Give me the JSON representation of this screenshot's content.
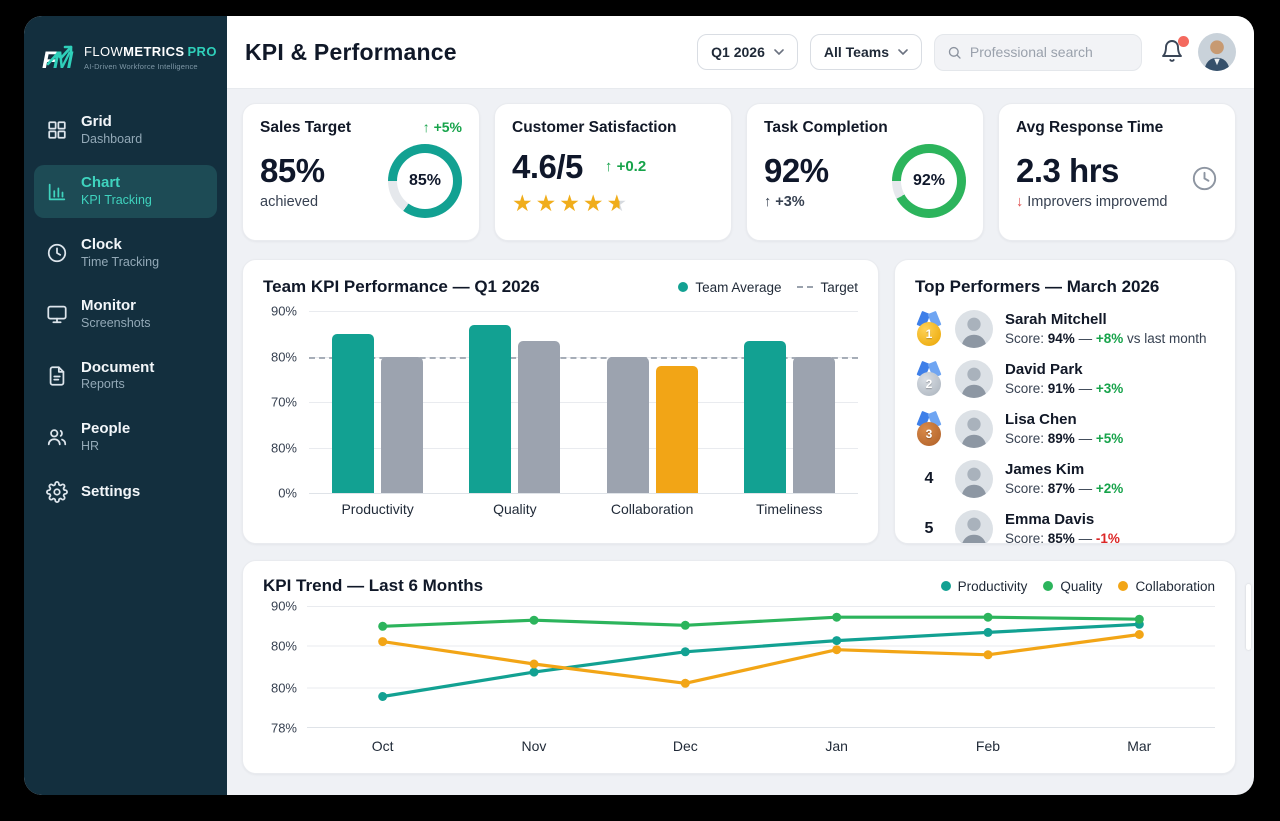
{
  "colors": {
    "teal": "#12A192",
    "green": "#2CB45C",
    "orange": "#F2A516",
    "gray": "#9CA3AF",
    "green_text": "#16A34A",
    "red_text": "#DC2626",
    "donut_track": "#E5E8EC"
  },
  "sidebar": {
    "logo_flow": "FLOW",
    "logo_metrics": "METRICS",
    "logo_pro": "PRO",
    "tagline": "AI-Driven Workforce Intelligence",
    "items": [
      {
        "title": "Grid",
        "subtitle": "Dashboard",
        "icon": "grid",
        "active": false
      },
      {
        "title": "Chart",
        "subtitle": "KPI Tracking",
        "icon": "chart",
        "active": true
      },
      {
        "title": "Clock",
        "subtitle": "Time Tracking",
        "icon": "clock",
        "active": false
      },
      {
        "title": "Monitor",
        "subtitle": "Screenshots",
        "icon": "monitor",
        "active": false
      },
      {
        "title": "Document",
        "subtitle": "Reports",
        "icon": "document",
        "active": false
      },
      {
        "title": "People",
        "subtitle": "HR",
        "icon": "people",
        "active": false
      },
      {
        "title": "Settings",
        "subtitle": "",
        "icon": "gear",
        "active": false
      }
    ]
  },
  "header": {
    "title": "KPI & Performance",
    "period_select": "Q1 2026",
    "team_select": "All Teams",
    "search_placeholder": "Professional search"
  },
  "kpi_cards": [
    {
      "title": "Sales Target",
      "header_delta": "+5%",
      "value": "85%",
      "sub": "achieved",
      "donut": {
        "percent": 85,
        "label": "85%",
        "color": "teal"
      }
    },
    {
      "title": "Customer Satisfaction",
      "value": "4.6/5",
      "value_delta": "+0.2",
      "stars": 4.5
    },
    {
      "title": "Task Completion",
      "value": "92%",
      "sub_delta": "+3%",
      "donut": {
        "percent": 92,
        "label": "92%",
        "color": "green"
      }
    },
    {
      "title": "Avg Response Time",
      "value": "2.3 hrs",
      "sub_arrow": "down",
      "sub": "Improvers improvemd",
      "icon": "clock"
    }
  ],
  "chart_data": [
    {
      "type": "bar",
      "title": "Team KPI Performance — Q1 2026",
      "legend": [
        {
          "label": "Team Average",
          "marker": "dot",
          "color": "teal"
        },
        {
          "label": "Target",
          "marker": "dashed"
        }
      ],
      "categories": [
        "Productivity",
        "Quality",
        "Collaboration",
        "Timeliness"
      ],
      "groups": [
        {
          "category": "Productivity",
          "bars": [
            {
              "value": 85,
              "color": "teal"
            },
            {
              "value": 80,
              "color": "gray"
            }
          ]
        },
        {
          "category": "Quality",
          "bars": [
            {
              "value": 87,
              "color": "teal"
            },
            {
              "value": 83.5,
              "color": "gray"
            }
          ]
        },
        {
          "category": "Collaboration",
          "bars": [
            {
              "value": 80,
              "color": "gray"
            },
            {
              "value": 78,
              "color": "orange"
            }
          ]
        },
        {
          "category": "Timeliness",
          "bars": [
            {
              "value": 83.5,
              "color": "teal"
            },
            {
              "value": 80,
              "color": "gray"
            }
          ]
        }
      ],
      "y_ticks": [
        "90%",
        "80%",
        "70%",
        "80%",
        "0%"
      ],
      "target_line": 80,
      "ylim": [
        0,
        90
      ],
      "grid": true,
      "legend_position": "top-right"
    },
    {
      "type": "line",
      "title": "KPI Trend — Last 6 Months",
      "x": [
        "Oct",
        "Nov",
        "Dec",
        "Jan",
        "Feb",
        "Mar"
      ],
      "y_ticks": [
        "90%",
        "80%",
        "80%",
        "78%"
      ],
      "ylim": [
        78,
        90
      ],
      "grid": true,
      "legend_position": "top-right",
      "series": [
        {
          "name": "Productivity",
          "color": "teal",
          "values": [
            81.1,
            83.5,
            85.5,
            86.6,
            87.4,
            88.2
          ]
        },
        {
          "name": "Quality",
          "color": "green",
          "values": [
            88.0,
            88.6,
            88.1,
            88.9,
            88.9,
            88.7
          ]
        },
        {
          "name": "Collaboration",
          "color": "orange",
          "values": [
            86.5,
            84.3,
            82.4,
            85.7,
            85.2,
            87.2
          ]
        }
      ]
    }
  ],
  "top_performers": {
    "title": "Top Performers — March 2026",
    "score_prefix": "Score: ",
    "items": [
      {
        "rank": 1,
        "medal": "gold",
        "name": "Sarah Mitchell",
        "score": "94%",
        "delta": "+8%",
        "suffix": " vs last month"
      },
      {
        "rank": 2,
        "medal": "silver",
        "name": "David Park",
        "score": "91%",
        "delta": "+3%",
        "suffix": ""
      },
      {
        "rank": 3,
        "medal": "bronze",
        "name": "Lisa Chen",
        "score": "89%",
        "delta": "+5%",
        "suffix": ""
      },
      {
        "rank": 4,
        "medal": null,
        "name": "James Kim",
        "score": "87%",
        "delta": "+2%",
        "suffix": ""
      },
      {
        "rank": 5,
        "medal": null,
        "name": "Emma Davis",
        "score": "85%",
        "delta": "-1%",
        "suffix": ""
      }
    ]
  }
}
